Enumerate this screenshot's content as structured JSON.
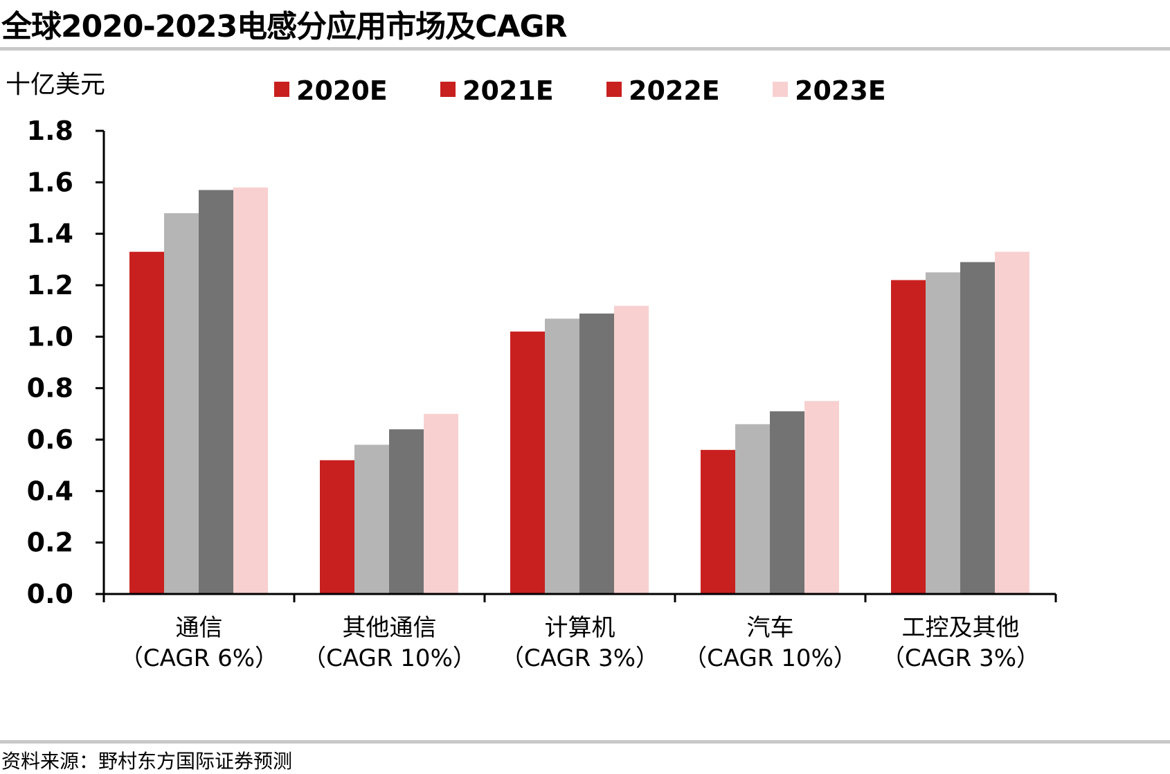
{
  "title": "全球2020-2023电感分应用市场及CAGR",
  "source": "资料来源：野村东方国际证券预测",
  "chart_data": {
    "type": "bar",
    "unit_label": "十亿美元",
    "ylim": [
      0,
      1.8
    ],
    "y_ticks": [
      "0.0",
      "0.2",
      "0.4",
      "0.6",
      "0.8",
      "1.0",
      "1.2",
      "1.4",
      "1.6",
      "1.8"
    ],
    "categories": [
      {
        "name": "通信",
        "cagr": "（CAGR 6%）"
      },
      {
        "name": "其他通信",
        "cagr": "（CAGR 10%）"
      },
      {
        "name": "计算机",
        "cagr": "（CAGR 3%）"
      },
      {
        "name": "汽车",
        "cagr": "（CAGR 10%）"
      },
      {
        "name": "工控及其他",
        "cagr": "（CAGR 3%）"
      }
    ],
    "series": [
      {
        "name": "2020E",
        "color": "#c8201f",
        "legend_color": "#c8201f",
        "values": [
          1.33,
          0.52,
          1.02,
          0.56,
          1.22
        ]
      },
      {
        "name": "2021E",
        "color": "#b5b5b5",
        "legend_color": "#c8201f",
        "values": [
          1.48,
          0.58,
          1.07,
          0.66,
          1.25
        ]
      },
      {
        "name": "2022E",
        "color": "#737373",
        "legend_color": "#c8201f",
        "values": [
          1.57,
          0.64,
          1.09,
          0.71,
          1.29
        ]
      },
      {
        "name": "2023E",
        "color": "#f8d0d0",
        "legend_color": "#f8d0d0",
        "values": [
          1.58,
          0.7,
          1.12,
          0.75,
          1.33
        ]
      }
    ],
    "grid": false,
    "legend_position": "top"
  }
}
